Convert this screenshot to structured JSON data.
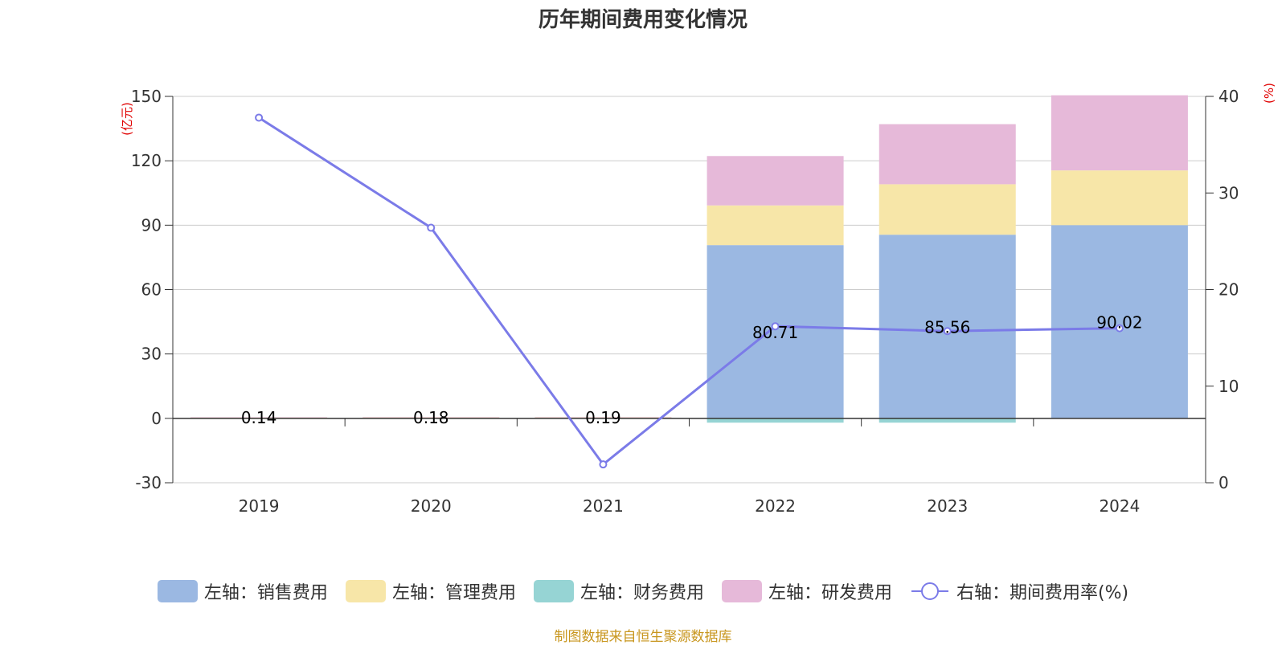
{
  "chart_data": {
    "type": "bar",
    "title": "历年期间费用变化情况",
    "categories": [
      "2019",
      "2020",
      "2021",
      "2022",
      "2023",
      "2024"
    ],
    "left_axis": {
      "unit_label": "(亿元)",
      "ylim": [
        -30,
        150
      ],
      "ticks": [
        -30,
        0,
        30,
        60,
        90,
        120,
        150
      ]
    },
    "right_axis": {
      "unit_label": "(%)",
      "ylim": [
        0,
        40
      ],
      "ticks": [
        0,
        10,
        20,
        30,
        40
      ]
    },
    "series": [
      {
        "name": "左轴：销售费用",
        "axis": "left",
        "color": "#9bb8e2",
        "values": [
          0.14,
          0.18,
          0.19,
          80.71,
          85.56,
          90.02
        ]
      },
      {
        "name": "左轴：管理费用",
        "axis": "left",
        "color": "#f7e6a8",
        "values": [
          0.3,
          0.3,
          0.3,
          18.5,
          23.5,
          25.5
        ]
      },
      {
        "name": "左轴：财务费用",
        "axis": "left",
        "color": "#96d4d4",
        "values": [
          0,
          0,
          0,
          -2.0,
          -2.0,
          0
        ]
      },
      {
        "name": "左轴：研发费用",
        "axis": "left",
        "color": "#e6b9d9",
        "values": [
          0.1,
          0.1,
          0.1,
          23.0,
          28.0,
          35.0
        ]
      },
      {
        "name": "右轴：期间费用率(%)",
        "axis": "right",
        "type": "line",
        "color": "#7b7be8",
        "values": [
          37.8,
          26.4,
          1.9,
          16.2,
          15.7,
          16.0
        ]
      }
    ],
    "data_labels": [
      "0.14",
      "0.18",
      "0.19",
      "80.71",
      "85.56",
      "90.02"
    ],
    "grid": true,
    "legend_position": "bottom"
  },
  "source_note": "制图数据来自恒生聚源数据库"
}
